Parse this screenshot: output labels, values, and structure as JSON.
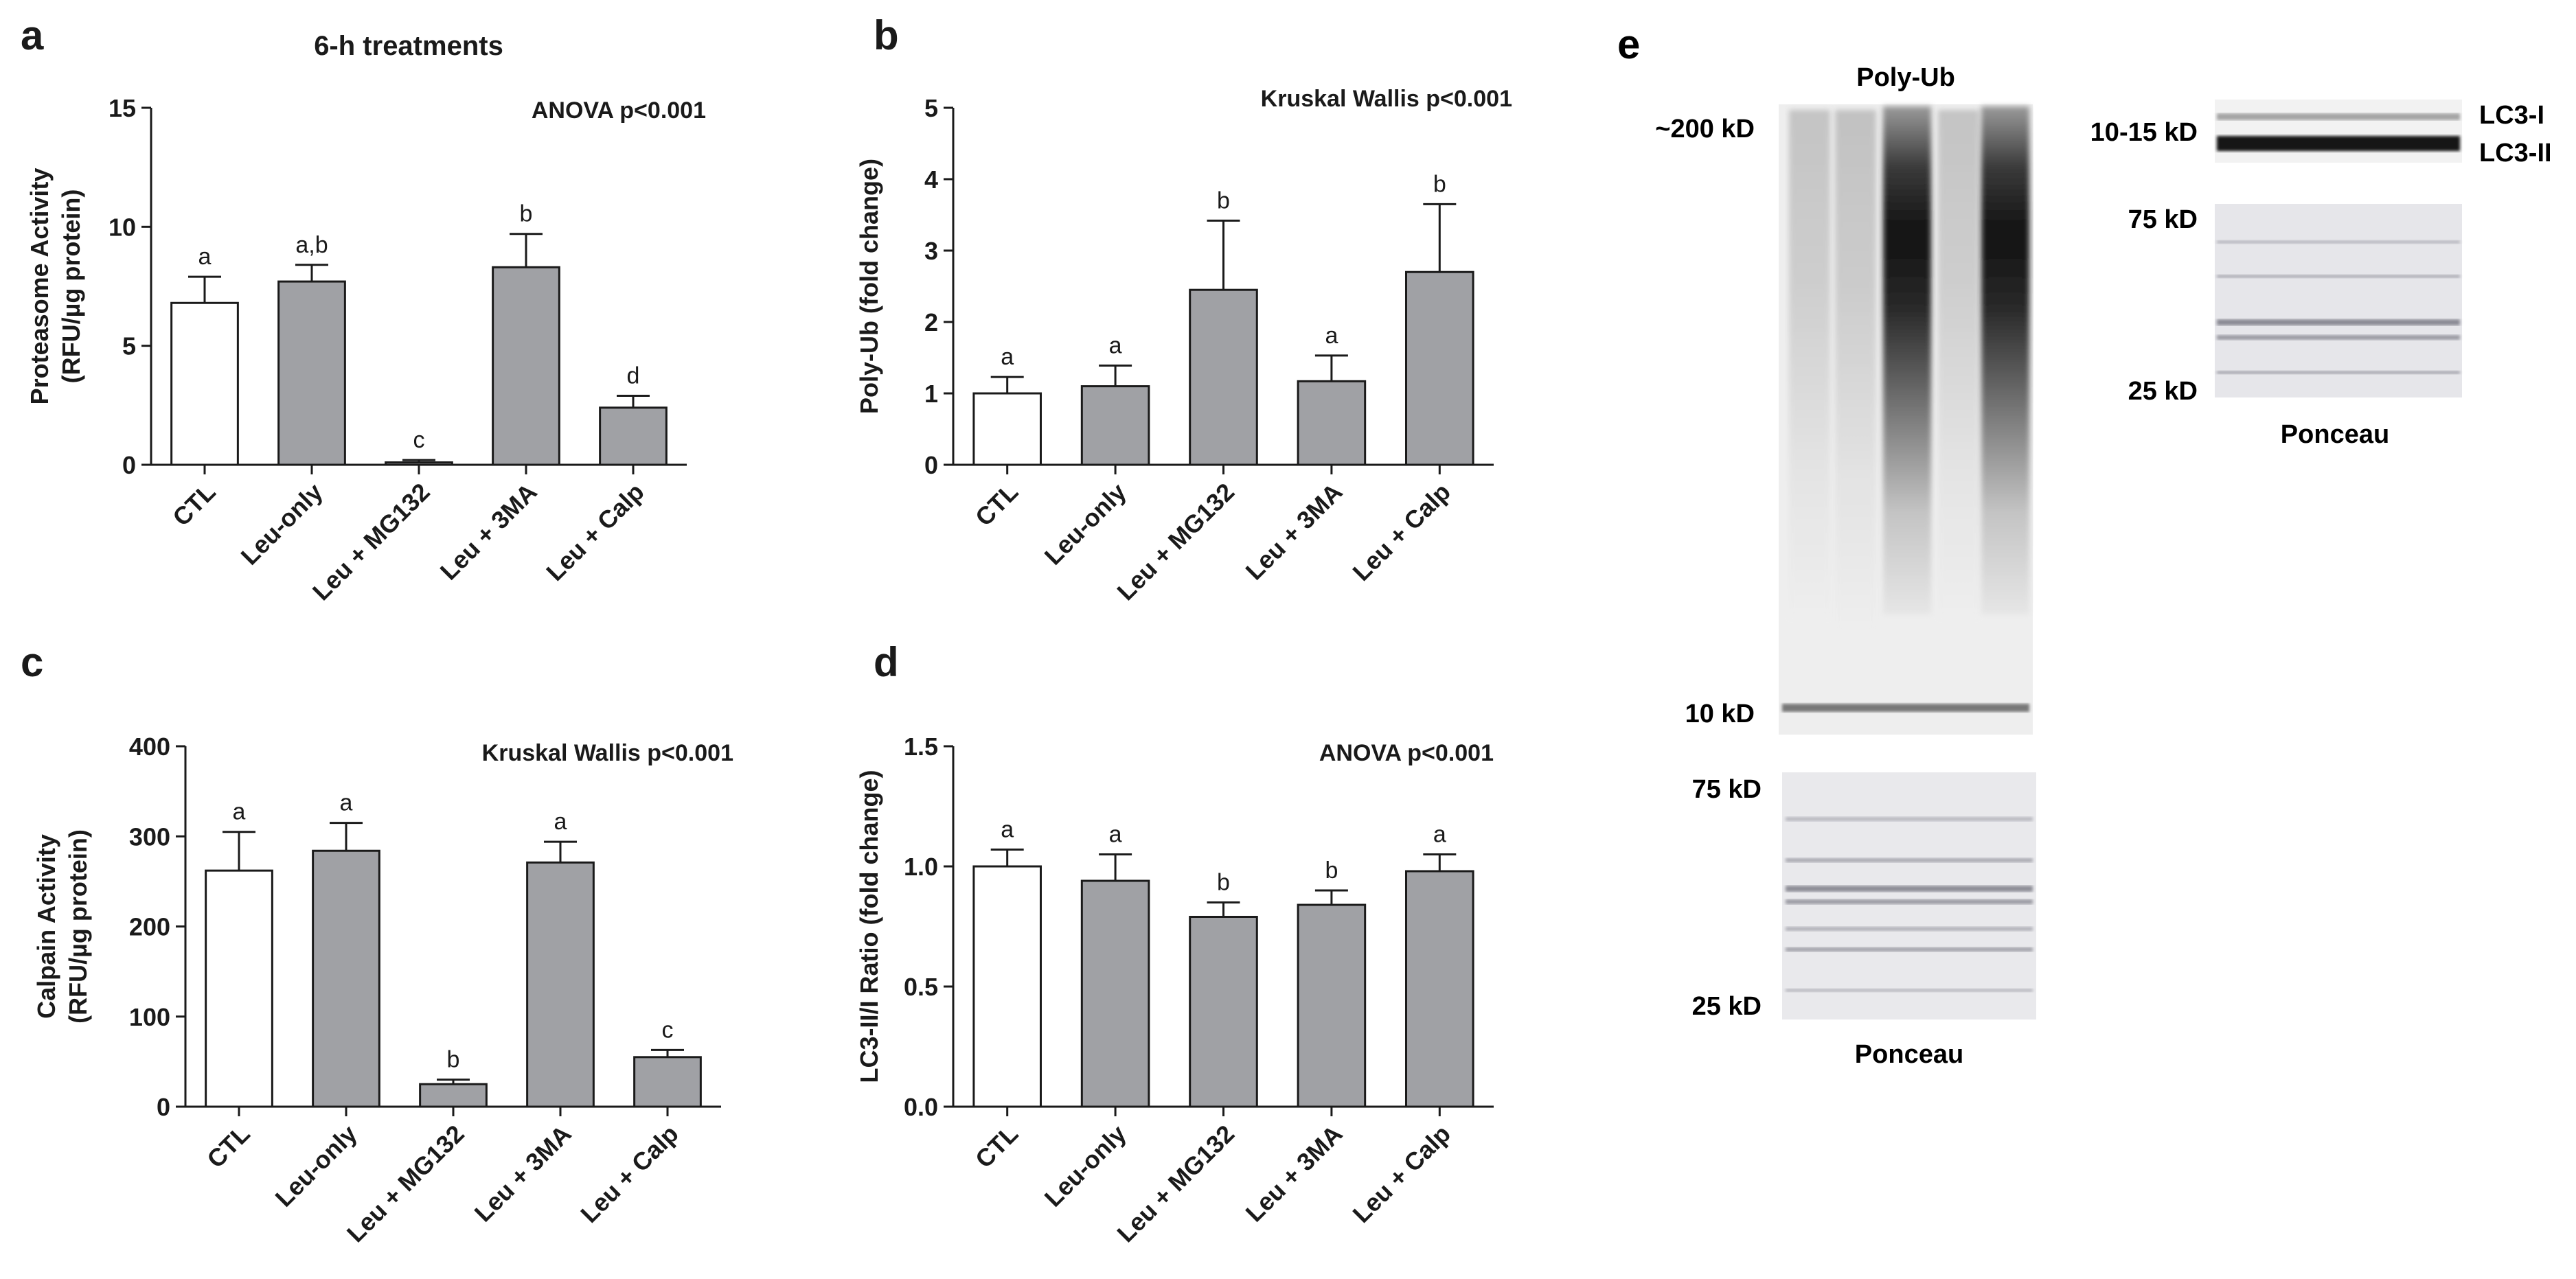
{
  "chart_data": [
    {
      "panel": "a",
      "type": "bar",
      "title": "6-h treatments",
      "stat": "ANOVA p<0.001",
      "ylabel_lines": [
        "Proteasome Activity",
        "(RFU/µg protein)"
      ],
      "categories": [
        "CTL",
        "Leu-only",
        "Leu + MG132",
        "Leu + 3MA",
        "Leu + Calp"
      ],
      "values": [
        6.8,
        7.7,
        0.1,
        8.3,
        2.4
      ],
      "errors": [
        1.1,
        0.7,
        0.1,
        1.4,
        0.5
      ],
      "letters": [
        "a",
        "a,b",
        "c",
        "b",
        "d"
      ],
      "ylim": [
        0,
        15
      ],
      "yticks": [
        0,
        5,
        10,
        15
      ]
    },
    {
      "panel": "b",
      "type": "bar",
      "title": "",
      "stat": "Kruskal Wallis p<0.001",
      "ylabel_lines": [
        "Poly-Ub (fold change)"
      ],
      "categories": [
        "CTL",
        "Leu-only",
        "Leu + MG132",
        "Leu + 3MA",
        "Leu + Calp"
      ],
      "values": [
        1.0,
        1.1,
        2.45,
        1.17,
        2.7
      ],
      "errors": [
        0.23,
        0.29,
        0.97,
        0.36,
        0.95
      ],
      "letters": [
        "a",
        "a",
        "b",
        "a",
        "b"
      ],
      "ylim": [
        0,
        5
      ],
      "yticks": [
        0,
        1,
        2,
        3,
        4,
        5
      ]
    },
    {
      "panel": "c",
      "type": "bar",
      "title": "",
      "stat": "Kruskal Wallis p<0.001",
      "ylabel_lines": [
        "Calpain Activity",
        "(RFU/µg protein)"
      ],
      "categories": [
        "CTL",
        "Leu-only",
        "Leu + MG132",
        "Leu + 3MA",
        "Leu + Calp"
      ],
      "values": [
        262,
        284,
        25,
        271,
        55
      ],
      "errors": [
        43,
        31,
        5,
        23,
        8
      ],
      "letters": [
        "a",
        "a",
        "b",
        "a",
        "c"
      ],
      "ylim": [
        0,
        400
      ],
      "yticks": [
        0,
        100,
        200,
        300,
        400
      ]
    },
    {
      "panel": "d",
      "type": "bar",
      "title": "",
      "stat": "ANOVA p<0.001",
      "ylabel_lines": [
        "LC3-II/I Ratio (fold change)"
      ],
      "categories": [
        "CTL",
        "Leu-only",
        "Leu + MG132",
        "Leu + 3MA",
        "Leu + Calp"
      ],
      "values": [
        1.0,
        0.94,
        0.79,
        0.84,
        0.98
      ],
      "errors": [
        0.07,
        0.11,
        0.06,
        0.06,
        0.07
      ],
      "letters": [
        "a",
        "a",
        "b",
        "b",
        "a"
      ],
      "ylim": [
        0,
        1.5
      ],
      "yticks": [
        "0.0",
        "0.5",
        "1.0",
        "1.5"
      ]
    }
  ],
  "colors": {
    "control_bar": "#ffffff",
    "treatment_bar": "#a0a1a5",
    "ink": "#1a1a1a"
  },
  "panel_e": {
    "letter": "e",
    "polyub_title": "Poly-Ub",
    "polyub_markers": [
      "~200 kD",
      "10 kD"
    ],
    "ponceau_left_markers": [
      "75 kD",
      "25 kD"
    ],
    "ponceau_left_caption": "Ponceau",
    "lc3_marker": "10-15 kD",
    "lc3_bands": [
      "LC3-I",
      "LC3-II"
    ],
    "ponceau_right_markers": [
      "75 kD",
      "25 kD"
    ],
    "ponceau_right_caption": "Ponceau"
  }
}
